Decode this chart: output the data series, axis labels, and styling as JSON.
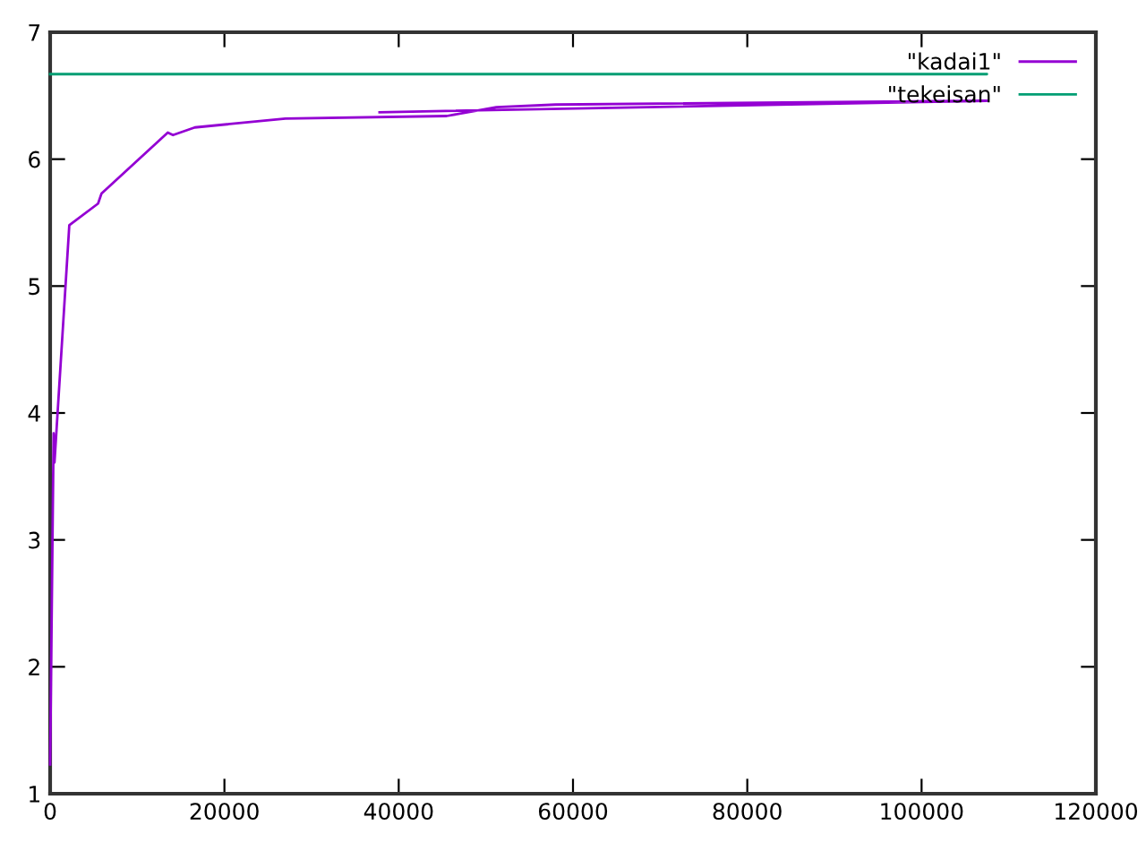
{
  "chart_data": {
    "type": "line",
    "xlim": [
      0,
      120000
    ],
    "ylim": [
      1,
      7
    ],
    "xticks": [
      0,
      20000,
      40000,
      60000,
      80000,
      100000,
      120000
    ],
    "yticks": [
      1,
      2,
      3,
      4,
      5,
      6,
      7
    ],
    "grid": false,
    "legend": "top right",
    "marker": "none",
    "line_style": "solid",
    "series": [
      {
        "name": "\"kadai1\"",
        "color": "#9400d3",
        "x": [
          0,
          400,
          500,
          2200,
          5500,
          5900,
          13500,
          14100,
          16600,
          27000,
          45500,
          51200,
          58000,
          107500,
          37800
        ],
        "values": [
          1.23,
          3.84,
          3.61,
          5.48,
          5.65,
          5.73,
          6.21,
          6.19,
          6.25,
          6.32,
          6.34,
          6.41,
          6.43,
          6.46,
          6.37
        ]
      },
      {
        "name": "\"tekeisan\"",
        "color": "#009e73",
        "x": [
          0,
          107500,
          37800
        ],
        "values": [
          6.67,
          6.67,
          6.67
        ]
      }
    ]
  }
}
